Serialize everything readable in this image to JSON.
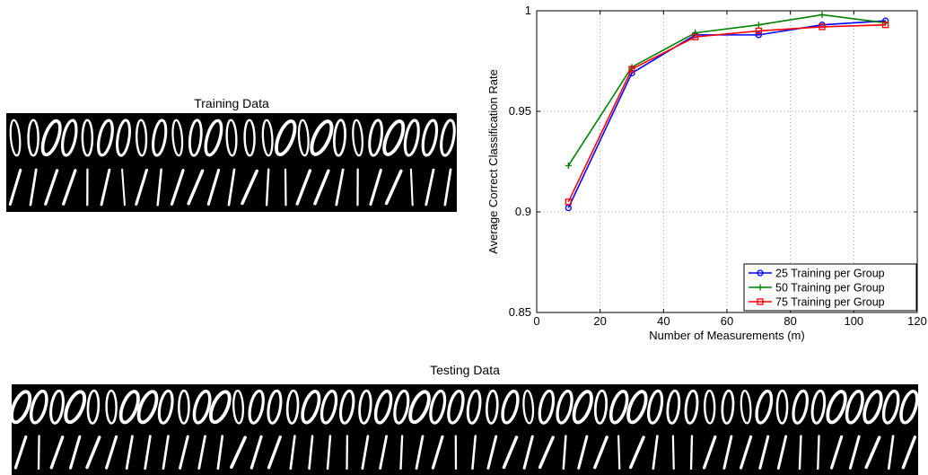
{
  "training": {
    "title": "Training Data",
    "rows": [
      {
        "digit": "0",
        "count": 25
      },
      {
        "digit": "1",
        "count": 25
      }
    ]
  },
  "testing": {
    "title": "Testing Data",
    "rows": [
      {
        "digit": "0",
        "count": 50
      },
      {
        "digit": "1",
        "count": 50
      }
    ]
  },
  "chart_data": {
    "type": "line",
    "title": "",
    "xlabel": "Number of Measurements (m)",
    "ylabel": "Average Correct Classification Rate",
    "xlim": [
      0,
      120
    ],
    "ylim": [
      0.85,
      1
    ],
    "xticks": [
      0,
      20,
      40,
      60,
      80,
      100,
      120
    ],
    "yticks": [
      0.85,
      0.9,
      0.95,
      1
    ],
    "ytick_labels": [
      "0.85",
      "0.9",
      "0.95",
      "1"
    ],
    "grid": true,
    "legend_position": "bottom-right",
    "x": [
      10,
      30,
      50,
      70,
      90,
      110
    ],
    "series": [
      {
        "name": "25 Training per Group",
        "color": "#0000ff",
        "marker": "circle",
        "values": [
          0.902,
          0.969,
          0.988,
          0.988,
          0.993,
          0.995
        ]
      },
      {
        "name": "50 Training per Group",
        "color": "#008000",
        "marker": "plus",
        "values": [
          0.923,
          0.972,
          0.989,
          0.993,
          0.998,
          0.994
        ]
      },
      {
        "name": "75 Training per Group",
        "color": "#ff0000",
        "marker": "square",
        "values": [
          0.905,
          0.971,
          0.987,
          0.99,
          0.992,
          0.993
        ]
      }
    ]
  }
}
